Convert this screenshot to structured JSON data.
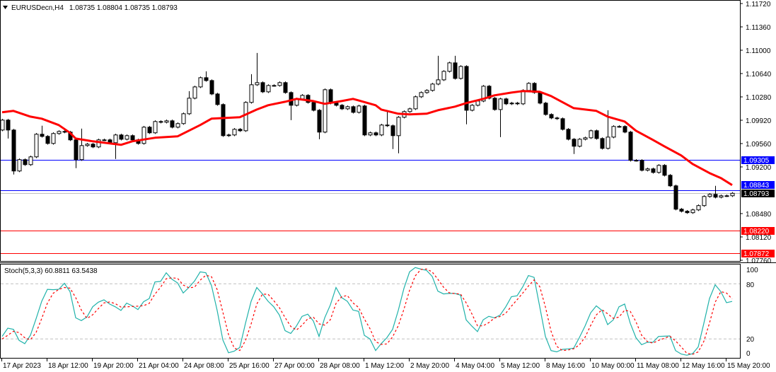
{
  "header": {
    "symbol": "EURUSDecn,H4",
    "ohlc": "1.08735 1.08804 1.08735 1.08793",
    "menu_icon": "triangle-down-icon"
  },
  "stoch_header": {
    "label": "Stoch(5,3,3) 60.8811 63.5438"
  },
  "colors": {
    "bull_body": "#FFFFFF",
    "bear_body": "#000000",
    "ma": "#FF0000",
    "stoch_k": "#20B2AA",
    "stoch_d": "#FF0000",
    "blue_level": "#0000FF",
    "red_level": "#FF0000",
    "bid_line": "#C0C0C0",
    "level_grid": "#C0C0C0"
  },
  "chart_data": [
    {
      "type": "candlestick",
      "symbol": "EURUSDecn",
      "timeframe": "H4",
      "ylim": [
        1.0776,
        1.1172
      ],
      "y_tick_labels": [
        "1.11720",
        "1.11360",
        "1.11000",
        "1.10640",
        "1.10280",
        "1.09920",
        "1.09560",
        "1.09200",
        "1.08480",
        "1.08120",
        "1.07760"
      ],
      "x_tick_labels": [
        "17 Apr 2023",
        "18 Apr 12:00",
        "19 Apr 20:00",
        "21 Apr 04:00",
        "24 Apr 08:00",
        "25 Apr 16:00",
        "27 Apr 00:00",
        "28 Apr 08:00",
        "1 May 12:00",
        "2 May 20:00",
        "4 May 04:00",
        "5 May 12:00",
        "8 May 16:00",
        "10 May 00:00",
        "11 May 08:00",
        "12 May 16:00",
        "15 May 20:00"
      ],
      "first_open": 1.09769,
      "close": [
        1.09922,
        1.09769,
        1.09137,
        1.09312,
        1.09235,
        1.09355,
        1.09704,
        1.09671,
        1.09562,
        1.09715,
        1.09747,
        1.09737,
        1.09617,
        1.09312,
        1.09529,
        1.09551,
        1.09508,
        1.09617,
        1.09617,
        1.09573,
        1.09693,
        1.09627,
        1.09682,
        1.09617,
        1.09562,
        1.09813,
        1.09726,
        1.099,
        1.09889,
        1.09911,
        1.09813,
        1.09868,
        1.1002,
        1.1026,
        1.10434,
        1.10576,
        1.10532,
        1.10325,
        1.10162,
        1.09682,
        1.09693,
        1.0978,
        1.09758,
        1.10195,
        1.10467,
        1.105,
        1.10358,
        1.10456,
        1.10456,
        1.105,
        1.10347,
        1.10151,
        1.10249,
        1.10304,
        1.10195,
        1.10074,
        1.09737,
        1.10391,
        1.10184,
        1.10151,
        1.10096,
        1.10129,
        1.10042,
        1.1014,
        1.09693,
        1.09726,
        1.09693,
        1.09846,
        1.09835,
        1.09682,
        1.09966,
        1.10053,
        1.10096,
        1.10282,
        1.10347,
        1.1038,
        1.10478,
        1.10543,
        1.10674,
        1.10805,
        1.10565,
        1.1075,
        1.10074,
        1.10151,
        1.10216,
        1.10445,
        1.1026,
        1.10085,
        1.10249,
        1.10173,
        1.10184,
        1.10173,
        1.1038,
        1.10489,
        1.10347,
        1.10184,
        1.10009,
        1.09955,
        1.09944,
        1.0978,
        1.09627,
        1.09519,
        1.09627,
        1.09649,
        1.09758,
        1.09638,
        1.09486,
        1.0966,
        1.09824,
        1.09824,
        1.09737,
        1.09301,
        1.09301,
        1.09148,
        1.0917,
        1.09115,
        1.09224,
        1.09071,
        1.08908,
        1.08548,
        1.08516,
        1.08494,
        1.08537,
        1.08603,
        1.08744,
        1.08777,
        1.08733,
        1.08755,
        1.08755,
        1.08793
      ],
      "high_overrides": {
        "8": 1.09835,
        "15": 1.09791,
        "34": 1.10369,
        "37": 1.10674,
        "45": 1.10631,
        "46": 1.10958,
        "69": 1.10053,
        "78": 1.10914,
        "81": 1.10914,
        "108": 1.10074,
        "127": 1.08908
      },
      "low_overrides": {
        "2": 1.09638,
        "3": 1.09083,
        "14": 1.09181,
        "21": 1.09323,
        "52": 1.09922,
        "57": 1.09627,
        "70": 1.09475,
        "71": 1.0941,
        "83": 1.09857,
        "89": 1.0966,
        "102": 1.09399
      },
      "moving_average": [
        [
          1,
          1.10042
        ],
        [
          3,
          1.10064
        ],
        [
          6,
          1.09976
        ],
        [
          8,
          1.09944
        ],
        [
          11,
          1.09846
        ],
        [
          13,
          1.09726
        ],
        [
          14,
          1.09638
        ],
        [
          17,
          1.09595
        ],
        [
          21,
          1.09551
        ],
        [
          22,
          1.0954
        ],
        [
          24,
          1.09595
        ],
        [
          28,
          1.09649
        ],
        [
          32,
          1.09671
        ],
        [
          34,
          1.09758
        ],
        [
          36,
          1.09846
        ],
        [
          38,
          1.09944
        ],
        [
          43,
          1.09966
        ],
        [
          46,
          1.10085
        ],
        [
          48,
          1.10151
        ],
        [
          51,
          1.10205
        ],
        [
          53,
          1.10249
        ],
        [
          56,
          1.10216
        ],
        [
          58,
          1.10173
        ],
        [
          61,
          1.10216
        ],
        [
          63,
          1.10249
        ],
        [
          67,
          1.10151
        ],
        [
          68,
          1.10085
        ],
        [
          71,
          1.1002
        ],
        [
          73,
          1.10009
        ],
        [
          76,
          1.1002
        ],
        [
          78,
          1.10074
        ],
        [
          81,
          1.10129
        ],
        [
          83,
          1.10184
        ],
        [
          86,
          1.10249
        ],
        [
          88,
          1.10304
        ],
        [
          91,
          1.10347
        ],
        [
          93,
          1.10369
        ],
        [
          96,
          1.10358
        ],
        [
          98,
          1.10293
        ],
        [
          102,
          1.10107
        ],
        [
          106,
          1.10064
        ],
        [
          108,
          1.09976
        ],
        [
          111,
          1.099
        ],
        [
          113,
          1.09758
        ],
        [
          116,
          1.09617
        ],
        [
          118,
          1.09519
        ],
        [
          121,
          1.09377
        ],
        [
          123,
          1.09246
        ],
        [
          126,
          1.09105
        ],
        [
          128,
          1.09029
        ],
        [
          130,
          1.0892
        ]
      ],
      "horizontal_levels": [
        {
          "price": 1.09305,
          "label": "1.09305",
          "color": "#0000FF"
        },
        {
          "price": 1.08843,
          "label": "1.08843",
          "color": "#0000FF"
        },
        {
          "price": 1.0822,
          "label": "1.08220",
          "color": "#FF0000"
        },
        {
          "price": 1.07872,
          "label": "1.07872",
          "color": "#FF0000"
        }
      ],
      "bid": {
        "price": 1.08793,
        "label": "1.08793"
      }
    },
    {
      "type": "line",
      "indicator": "Stoch(5,3,3)",
      "ylim": [
        0,
        100
      ],
      "levels": [
        80,
        20
      ],
      "y_tick_labels": [
        "100",
        "80",
        "20",
        "0"
      ],
      "k": [
        22.8,
        31.8,
        30.5,
        18.5,
        14.9,
        24,
        42,
        61,
        74,
        73.6,
        74,
        80.5,
        71.5,
        43,
        40,
        44,
        55,
        60,
        62.6,
        58,
        55,
        51,
        59,
        56,
        52,
        60.5,
        64,
        82,
        82.6,
        92,
        85,
        81,
        70,
        76,
        83,
        93,
        92,
        78,
        51,
        19,
        5,
        6.7,
        10.8,
        37,
        61,
        76,
        69,
        61,
        55,
        46,
        29,
        26,
        34,
        44.6,
        47,
        39.5,
        22.8,
        43,
        57,
        76,
        65,
        61,
        51.5,
        50,
        24,
        20,
        7.4,
        15,
        21.5,
        30.5,
        51,
        75,
        93,
        97.7,
        96,
        94.6,
        88,
        72,
        69,
        69.5,
        69.5,
        67.7,
        40.8,
        34,
        28,
        40.8,
        44.6,
        43,
        46,
        55,
        66,
        67,
        76.7,
        89,
        87,
        55,
        22.8,
        7.4,
        6,
        8.7,
        9.2,
        10,
        21.5,
        34,
        48.5,
        56,
        51,
        35.6,
        40.8,
        55,
        58,
        37,
        21.5,
        13.8,
        16.4,
        16.4,
        22.8,
        23,
        23.3,
        7.4,
        3.6,
        2.3,
        4,
        11.3,
        37,
        64,
        79,
        71.5,
        59.5,
        60.8811
      ],
      "d": [
        20,
        24,
        28.4,
        26.9,
        21.3,
        19.1,
        27,
        42.3,
        59,
        69.5,
        73.9,
        76,
        75.3,
        65,
        51.5,
        42.3,
        46.3,
        53,
        59.2,
        60.2,
        58.5,
        54.7,
        55,
        55.3,
        55.7,
        56.2,
        58.8,
        68.8,
        76.2,
        85.5,
        86.5,
        86,
        78.7,
        75.7,
        76.3,
        84,
        89.3,
        87.7,
        73.7,
        49.3,
        25,
        10.2,
        7.5,
        18.2,
        36.3,
        58,
        68.7,
        68.7,
        61.7,
        54,
        43.3,
        33.7,
        29.7,
        34.9,
        41.9,
        43.7,
        36.4,
        35.1,
        40.9,
        58.7,
        66,
        67.3,
        59.2,
        54.2,
        41.8,
        31.3,
        17.1,
        14.1,
        14.6,
        22.3,
        34.3,
        52.2,
        73,
        88.6,
        95.6,
        96.1,
        92.9,
        84.9,
        76.3,
        70.2,
        69.3,
        68.9,
        59.3,
        47.5,
        34.3,
        34.3,
        37.8,
        42.8,
        44.5,
        48,
        55.7,
        62.7,
        69.9,
        77.6,
        84.2,
        77,
        54.9,
        28.4,
        12.1,
        7.4,
        8,
        9.3,
        13.6,
        21.8,
        34.7,
        46.2,
        51.8,
        47.5,
        42.5,
        43.8,
        51.3,
        50,
        38.8,
        24.1,
        17.2,
        15.5,
        18.5,
        20.7,
        23,
        17.9,
        11.4,
        4.4,
        3.3,
        5.9,
        17.4,
        37.4,
        60,
        71.5,
        70,
        63.5438
      ]
    }
  ]
}
